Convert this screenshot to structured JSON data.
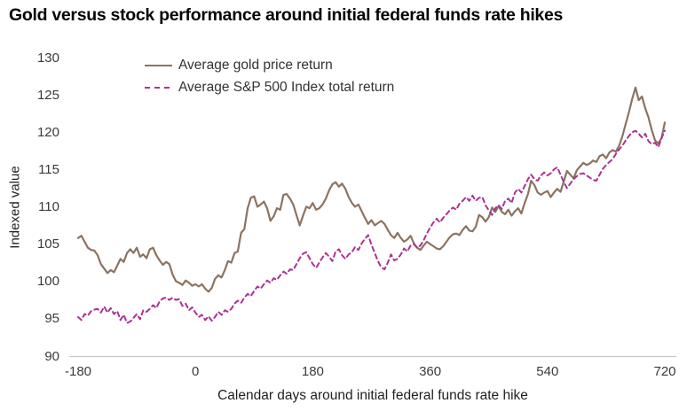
{
  "title": "Gold versus stock performance around initial federal funds rate hikes",
  "colors": {
    "gold_line": "#8c7361",
    "sp500_line": "#aa3293",
    "axis_line": "#c9c9c9",
    "tick_text": "#3a3a3a",
    "title_text": "#050505"
  },
  "chart_data": {
    "type": "line",
    "title": "Gold versus stock performance around initial federal funds rate hikes",
    "xlabel": "Calendar days around initial federal funds rate hike",
    "ylabel": "Indexed value",
    "xlim": [
      -180,
      720
    ],
    "ylim": [
      90,
      130
    ],
    "x_ticks": [
      -180,
      0,
      180,
      360,
      540,
      720
    ],
    "y_ticks": [
      90,
      95,
      100,
      105,
      110,
      115,
      120,
      125,
      130
    ],
    "grid": false,
    "legend_position": "top-left-inside",
    "x": [
      -180,
      -175,
      -170,
      -165,
      -160,
      -155,
      -150,
      -145,
      -140,
      -135,
      -130,
      -125,
      -120,
      -115,
      -110,
      -105,
      -100,
      -95,
      -90,
      -85,
      -80,
      -75,
      -70,
      -65,
      -60,
      -55,
      -50,
      -45,
      -40,
      -35,
      -30,
      -25,
      -20,
      -15,
      -10,
      -5,
      0,
      5,
      10,
      15,
      20,
      25,
      30,
      35,
      40,
      45,
      50,
      55,
      60,
      65,
      70,
      75,
      80,
      85,
      90,
      95,
      100,
      105,
      110,
      115,
      120,
      125,
      130,
      135,
      140,
      145,
      150,
      155,
      160,
      165,
      170,
      175,
      180,
      185,
      190,
      195,
      200,
      205,
      210,
      215,
      220,
      225,
      230,
      235,
      240,
      245,
      250,
      255,
      260,
      265,
      270,
      275,
      280,
      285,
      290,
      295,
      300,
      305,
      310,
      315,
      320,
      325,
      330,
      335,
      340,
      345,
      350,
      355,
      360,
      365,
      370,
      375,
      380,
      385,
      390,
      395,
      400,
      405,
      410,
      415,
      420,
      425,
      430,
      435,
      440,
      445,
      450,
      455,
      460,
      465,
      470,
      475,
      480,
      485,
      490,
      495,
      500,
      505,
      510,
      515,
      520,
      525,
      530,
      535,
      540,
      545,
      550,
      555,
      560,
      565,
      570,
      575,
      580,
      585,
      590,
      595,
      600,
      605,
      610,
      615,
      620,
      625,
      630,
      635,
      640,
      645,
      650,
      655,
      660,
      665,
      670,
      675,
      680,
      685,
      690,
      695,
      700,
      705,
      710,
      715,
      720
    ],
    "series": [
      {
        "name": "Average gold price return",
        "style": "solid",
        "color": "#8c7361",
        "values": [
          105.9,
          106.2,
          105.4,
          104.6,
          104.3,
          104.2,
          103.6,
          102.4,
          101.8,
          101.2,
          101.6,
          101.3,
          102.2,
          103.1,
          102.7,
          103.9,
          104.4,
          103.9,
          104.6,
          103.4,
          103.7,
          103.2,
          104.4,
          104.6,
          103.6,
          102.9,
          102.3,
          102.7,
          102.4,
          101.0,
          100.1,
          99.9,
          99.6,
          100.2,
          99.9,
          99.5,
          99.7,
          99.4,
          99.7,
          99.1,
          98.7,
          99.2,
          100.4,
          100.9,
          100.6,
          101.6,
          102.8,
          102.6,
          103.9,
          104.1,
          106.6,
          107.1,
          109.9,
          111.3,
          111.5,
          110.1,
          110.4,
          110.8,
          109.9,
          108.2,
          108.8,
          109.9,
          109.7,
          111.7,
          111.8,
          111.2,
          110.4,
          109.0,
          107.6,
          108.9,
          110.1,
          109.9,
          110.6,
          109.7,
          109.9,
          110.4,
          111.2,
          112.3,
          113.1,
          113.4,
          112.8,
          113.2,
          112.5,
          111.4,
          110.6,
          110.1,
          110.4,
          109.5,
          108.6,
          107.8,
          108.3,
          107.6,
          107.9,
          108.2,
          107.8,
          107.0,
          106.3,
          105.9,
          106.6,
          105.9,
          105.4,
          105.7,
          106.2,
          105.2,
          104.6,
          104.3,
          104.9,
          105.4,
          105.1,
          104.8,
          104.5,
          104.4,
          104.8,
          105.4,
          106.0,
          106.4,
          106.5,
          106.3,
          107.0,
          107.5,
          106.9,
          106.8,
          107.4,
          109.0,
          108.7,
          108.1,
          108.7,
          110.0,
          109.4,
          110.2,
          109.4,
          109.1,
          109.7,
          108.9,
          109.5,
          109.9,
          109.2,
          110.6,
          111.8,
          113.6,
          113.0,
          112.0,
          111.7,
          112.0,
          112.2,
          111.4,
          112.0,
          112.5,
          112.1,
          113.5,
          114.9,
          114.4,
          113.9,
          115.0,
          115.5,
          116.0,
          115.7,
          115.9,
          116.3,
          116.1,
          116.9,
          117.1,
          116.6,
          117.4,
          117.7,
          117.5,
          118.3,
          119.6,
          121.2,
          122.8,
          124.6,
          126.1,
          124.4,
          124.9,
          123.3,
          122.1,
          120.4,
          119.0,
          118.6,
          119.3,
          121.4
        ]
      },
      {
        "name": "Average S&P 500 Index total return",
        "style": "dashed",
        "color": "#aa3293",
        "values": [
          95.3,
          94.9,
          95.7,
          95.5,
          96.1,
          96.3,
          96.4,
          95.9,
          96.7,
          95.9,
          96.5,
          95.7,
          96.1,
          94.9,
          95.6,
          94.5,
          94.7,
          95.2,
          95.7,
          95.0,
          96.2,
          96.0,
          96.4,
          96.9,
          96.5,
          97.4,
          97.8,
          97.9,
          97.6,
          97.9,
          97.6,
          97.7,
          96.8,
          97.1,
          96.2,
          96.6,
          95.9,
          95.3,
          95.6,
          94.9,
          95.4,
          94.8,
          95.3,
          96.0,
          95.6,
          96.2,
          96.0,
          96.4,
          97.1,
          97.5,
          97.2,
          97.9,
          98.4,
          98.1,
          98.8,
          99.4,
          99.1,
          99.7,
          100.2,
          99.9,
          100.5,
          100.3,
          100.9,
          101.4,
          101.1,
          101.7,
          101.6,
          102.4,
          103.2,
          103.8,
          104.0,
          103.2,
          102.4,
          101.9,
          102.6,
          103.3,
          103.9,
          103.4,
          102.8,
          104.1,
          104.4,
          103.6,
          103.1,
          103.7,
          104.0,
          104.7,
          104.3,
          105.2,
          105.8,
          106.3,
          105.0,
          103.9,
          102.8,
          102.0,
          101.7,
          102.6,
          103.7,
          102.9,
          103.1,
          103.7,
          104.5,
          104.1,
          104.9,
          105.1,
          104.6,
          104.9,
          105.6,
          106.5,
          107.3,
          108.0,
          108.5,
          108.0,
          108.6,
          109.1,
          109.6,
          110.0,
          109.7,
          110.5,
          110.9,
          111.4,
          110.9,
          111.6,
          110.9,
          111.3,
          111.4,
          110.3,
          109.6,
          109.0,
          109.9,
          110.3,
          109.8,
          110.9,
          111.2,
          110.6,
          112.0,
          112.5,
          112.0,
          112.9,
          113.8,
          114.4,
          113.8,
          113.6,
          114.3,
          114.7,
          114.3,
          114.6,
          115.1,
          115.4,
          114.4,
          113.4,
          112.6,
          113.2,
          113.8,
          114.2,
          114.5,
          114.6,
          114.3,
          114.0,
          113.7,
          113.6,
          114.4,
          115.2,
          115.7,
          116.1,
          116.5,
          117.2,
          117.8,
          118.3,
          119.0,
          119.6,
          120.1,
          120.3,
          119.9,
          119.4,
          119.9,
          118.9,
          118.5,
          118.7,
          118.1,
          119.3,
          120.3
        ]
      }
    ]
  }
}
